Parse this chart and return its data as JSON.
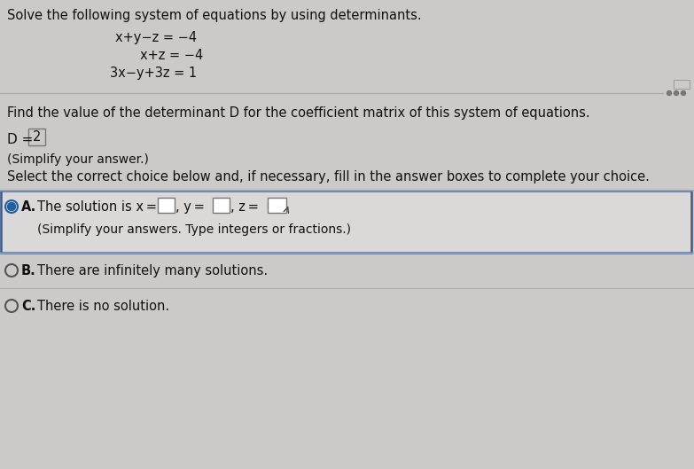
{
  "bg_color": "#ccc9c9",
  "title_text": "Solve the following system of equations by using determinants.",
  "eq1": "x+y−z = −4",
  "eq2": "x+z = −4",
  "eq3": "3x−y+3z = 1",
  "find_text": "Find the value of the determinant D for the coefficient matrix of this system of equations.",
  "d_prefix": "D = ",
  "d_value": "2",
  "simplify_text": "(Simplify your answer.)",
  "select_text": "Select the correct choice below and, if necessary, fill in the answer boxes to complete your choice.",
  "optA_line1a": "The solution is x =",
  "optA_line1b": ", y =",
  "optA_line1c": ", z =",
  "optA_sub": "(Simplify your answers. Type integers or fractions.)",
  "optB_text": "There are infinitely many solutions.",
  "optC_text": "There is no solution.",
  "selected_radio_fill": "#2060a0",
  "selected_radio_border": "#2060a0",
  "unselected_radio_border": "#555555",
  "divider_color": "#aaaaaa",
  "text_color": "#111111",
  "answer_box_border": "#777777",
  "sectionA_bg": "#dbd8d8",
  "sectionA_border": "#3a5a8a",
  "dots_color": "#777777"
}
